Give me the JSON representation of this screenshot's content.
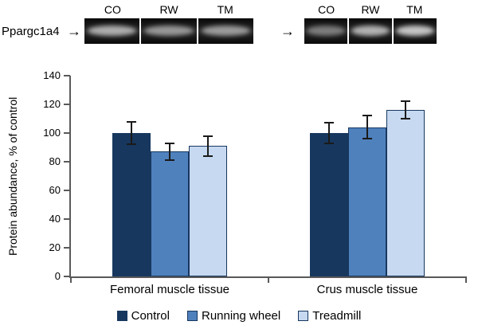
{
  "blot": {
    "protein_label": "Ppargc1a4",
    "arrow_glyph": "→",
    "panels": [
      {
        "lanes": [
          {
            "label": "CO",
            "intensity": 0.72
          },
          {
            "label": "RW",
            "intensity": 0.6
          },
          {
            "label": "TM",
            "intensity": 0.62
          }
        ]
      },
      {
        "lanes": [
          {
            "label": "CO",
            "intensity": 0.45
          },
          {
            "label": "RW",
            "intensity": 0.75
          },
          {
            "label": "TM",
            "intensity": 0.85
          }
        ]
      }
    ]
  },
  "chart_data": {
    "type": "bar",
    "title": "",
    "xlabel": "",
    "ylabel": "Protein abundance, % of control",
    "ylim": [
      0,
      140
    ],
    "ytick_step": 20,
    "grid": false,
    "legend_position": "bottom",
    "categories": [
      "Femoral muscle tissue",
      "Crus muscle tissue"
    ],
    "series": [
      {
        "name": "Control",
        "color": "#17375E",
        "values": [
          100,
          100
        ],
        "errors": [
          8,
          7
        ]
      },
      {
        "name": "Running wheel",
        "color": "#4F81BD",
        "values": [
          87,
          104
        ],
        "errors": [
          6,
          8
        ]
      },
      {
        "name": "Treadmill",
        "color": "#C6D9F1",
        "values": [
          91,
          116
        ],
        "errors": [
          7,
          6
        ]
      }
    ]
  }
}
